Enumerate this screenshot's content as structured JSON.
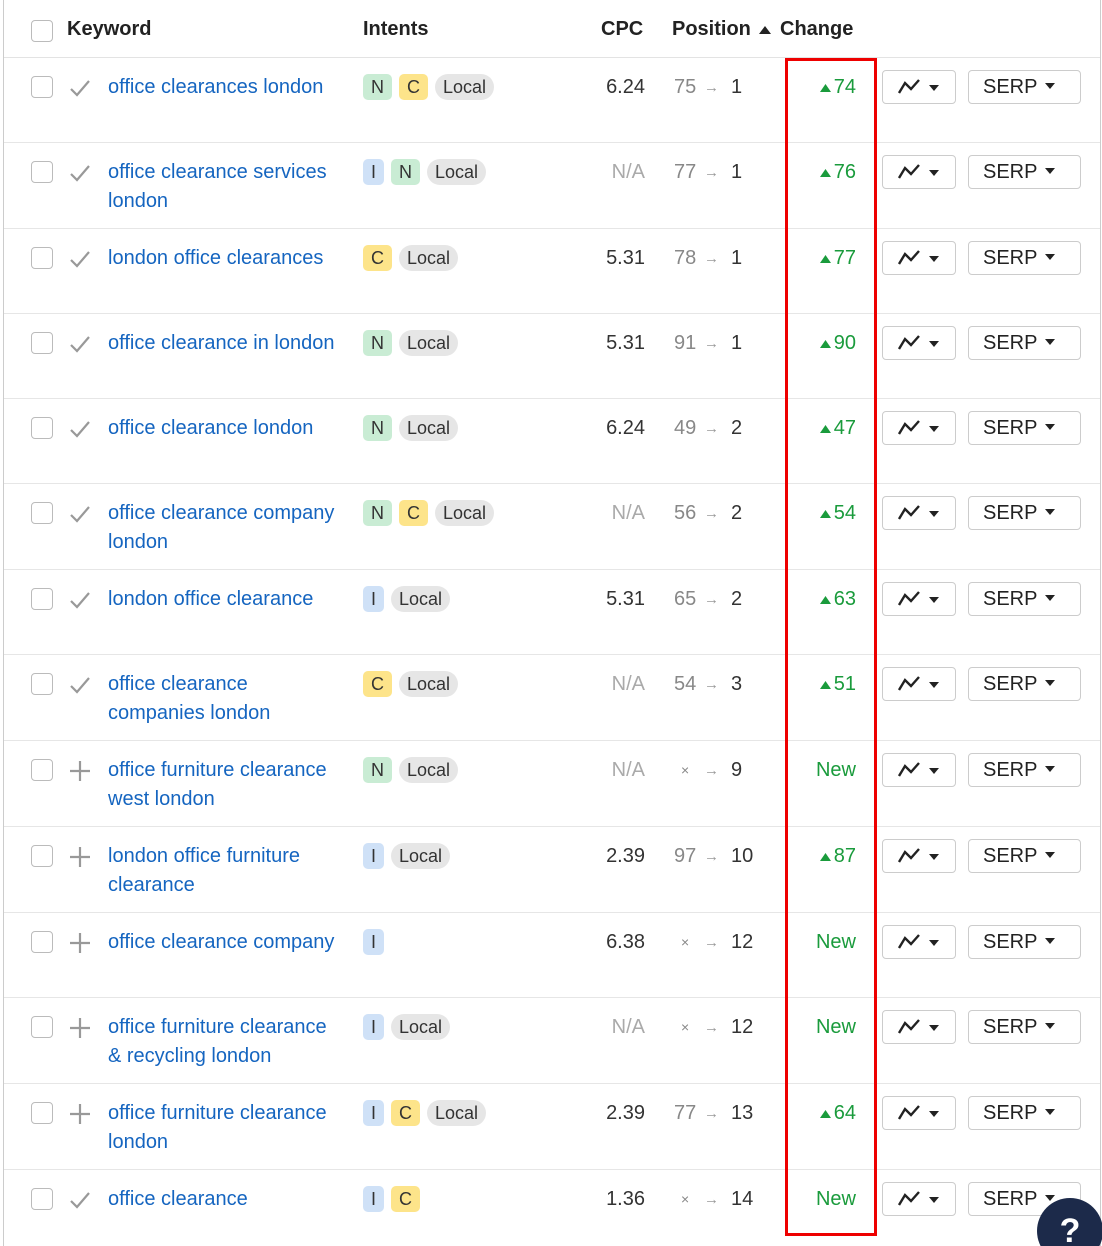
{
  "header": {
    "columns": [
      "Keyword",
      "Intents",
      "CPC",
      "Position",
      "Change"
    ]
  },
  "intent_colors": {
    "N": "#c9ecd4",
    "C": "#fde48a",
    "I": "#cfe1f7",
    "Local": "#e6e6e6"
  },
  "serp_button": "SERP",
  "help_button": "?",
  "rows": [
    {
      "status": "check",
      "keyword": "office clearances london",
      "intents": [
        "N",
        "C",
        "Local"
      ],
      "cpc": 6.24,
      "from": 75,
      "to": 1,
      "change": 74
    },
    {
      "status": "check",
      "keyword": "office clearance services london",
      "intents": [
        "I",
        "N",
        "Local"
      ],
      "cpc": "N/A",
      "from": 77,
      "to": 1,
      "change": 76
    },
    {
      "status": "check",
      "keyword": "london office clearances",
      "intents": [
        "C",
        "Local"
      ],
      "cpc": 5.31,
      "from": 78,
      "to": 1,
      "change": 77
    },
    {
      "status": "check",
      "keyword": "office clearance in london",
      "intents": [
        "N",
        "Local"
      ],
      "cpc": 5.31,
      "from": 91,
      "to": 1,
      "change": 90
    },
    {
      "status": "check",
      "keyword": "office clearance london",
      "intents": [
        "N",
        "Local"
      ],
      "cpc": 6.24,
      "from": 49,
      "to": 2,
      "change": 47
    },
    {
      "status": "check",
      "keyword": "office clearance company london",
      "intents": [
        "N",
        "C",
        "Local"
      ],
      "cpc": "N/A",
      "from": 56,
      "to": 2,
      "change": 54
    },
    {
      "status": "check",
      "keyword": "london office clearance",
      "intents": [
        "I",
        "Local"
      ],
      "cpc": 5.31,
      "from": 65,
      "to": 2,
      "change": 63
    },
    {
      "status": "check",
      "keyword": "office clearance companies london",
      "intents": [
        "C",
        "Local"
      ],
      "cpc": "N/A",
      "from": 54,
      "to": 3,
      "change": 51
    },
    {
      "status": "plus",
      "keyword": "office furniture clearance west london",
      "intents": [
        "N",
        "Local"
      ],
      "cpc": "N/A",
      "from": "×",
      "to": 9,
      "change": "New"
    },
    {
      "status": "plus",
      "keyword": "london office furniture clearance",
      "intents": [
        "I",
        "Local"
      ],
      "cpc": 2.39,
      "from": 97,
      "to": 10,
      "change": 87
    },
    {
      "status": "plus",
      "keyword": "office clearance company",
      "intents": [
        "I"
      ],
      "cpc": 6.38,
      "from": "×",
      "to": 12,
      "change": "New"
    },
    {
      "status": "plus",
      "keyword": "office furniture clearance & recycling london",
      "intents": [
        "I",
        "Local"
      ],
      "cpc": "N/A",
      "from": "×",
      "to": 12,
      "change": "New"
    },
    {
      "status": "plus",
      "keyword": "office furniture clearance london",
      "intents": [
        "I",
        "C",
        "Local"
      ],
      "cpc": 2.39,
      "from": 77,
      "to": 13,
      "change": 64
    },
    {
      "status": "check",
      "keyword": "office clearance",
      "intents": [
        "I",
        "C"
      ],
      "cpc": 1.36,
      "from": "×",
      "to": 14,
      "change": "New"
    }
  ]
}
